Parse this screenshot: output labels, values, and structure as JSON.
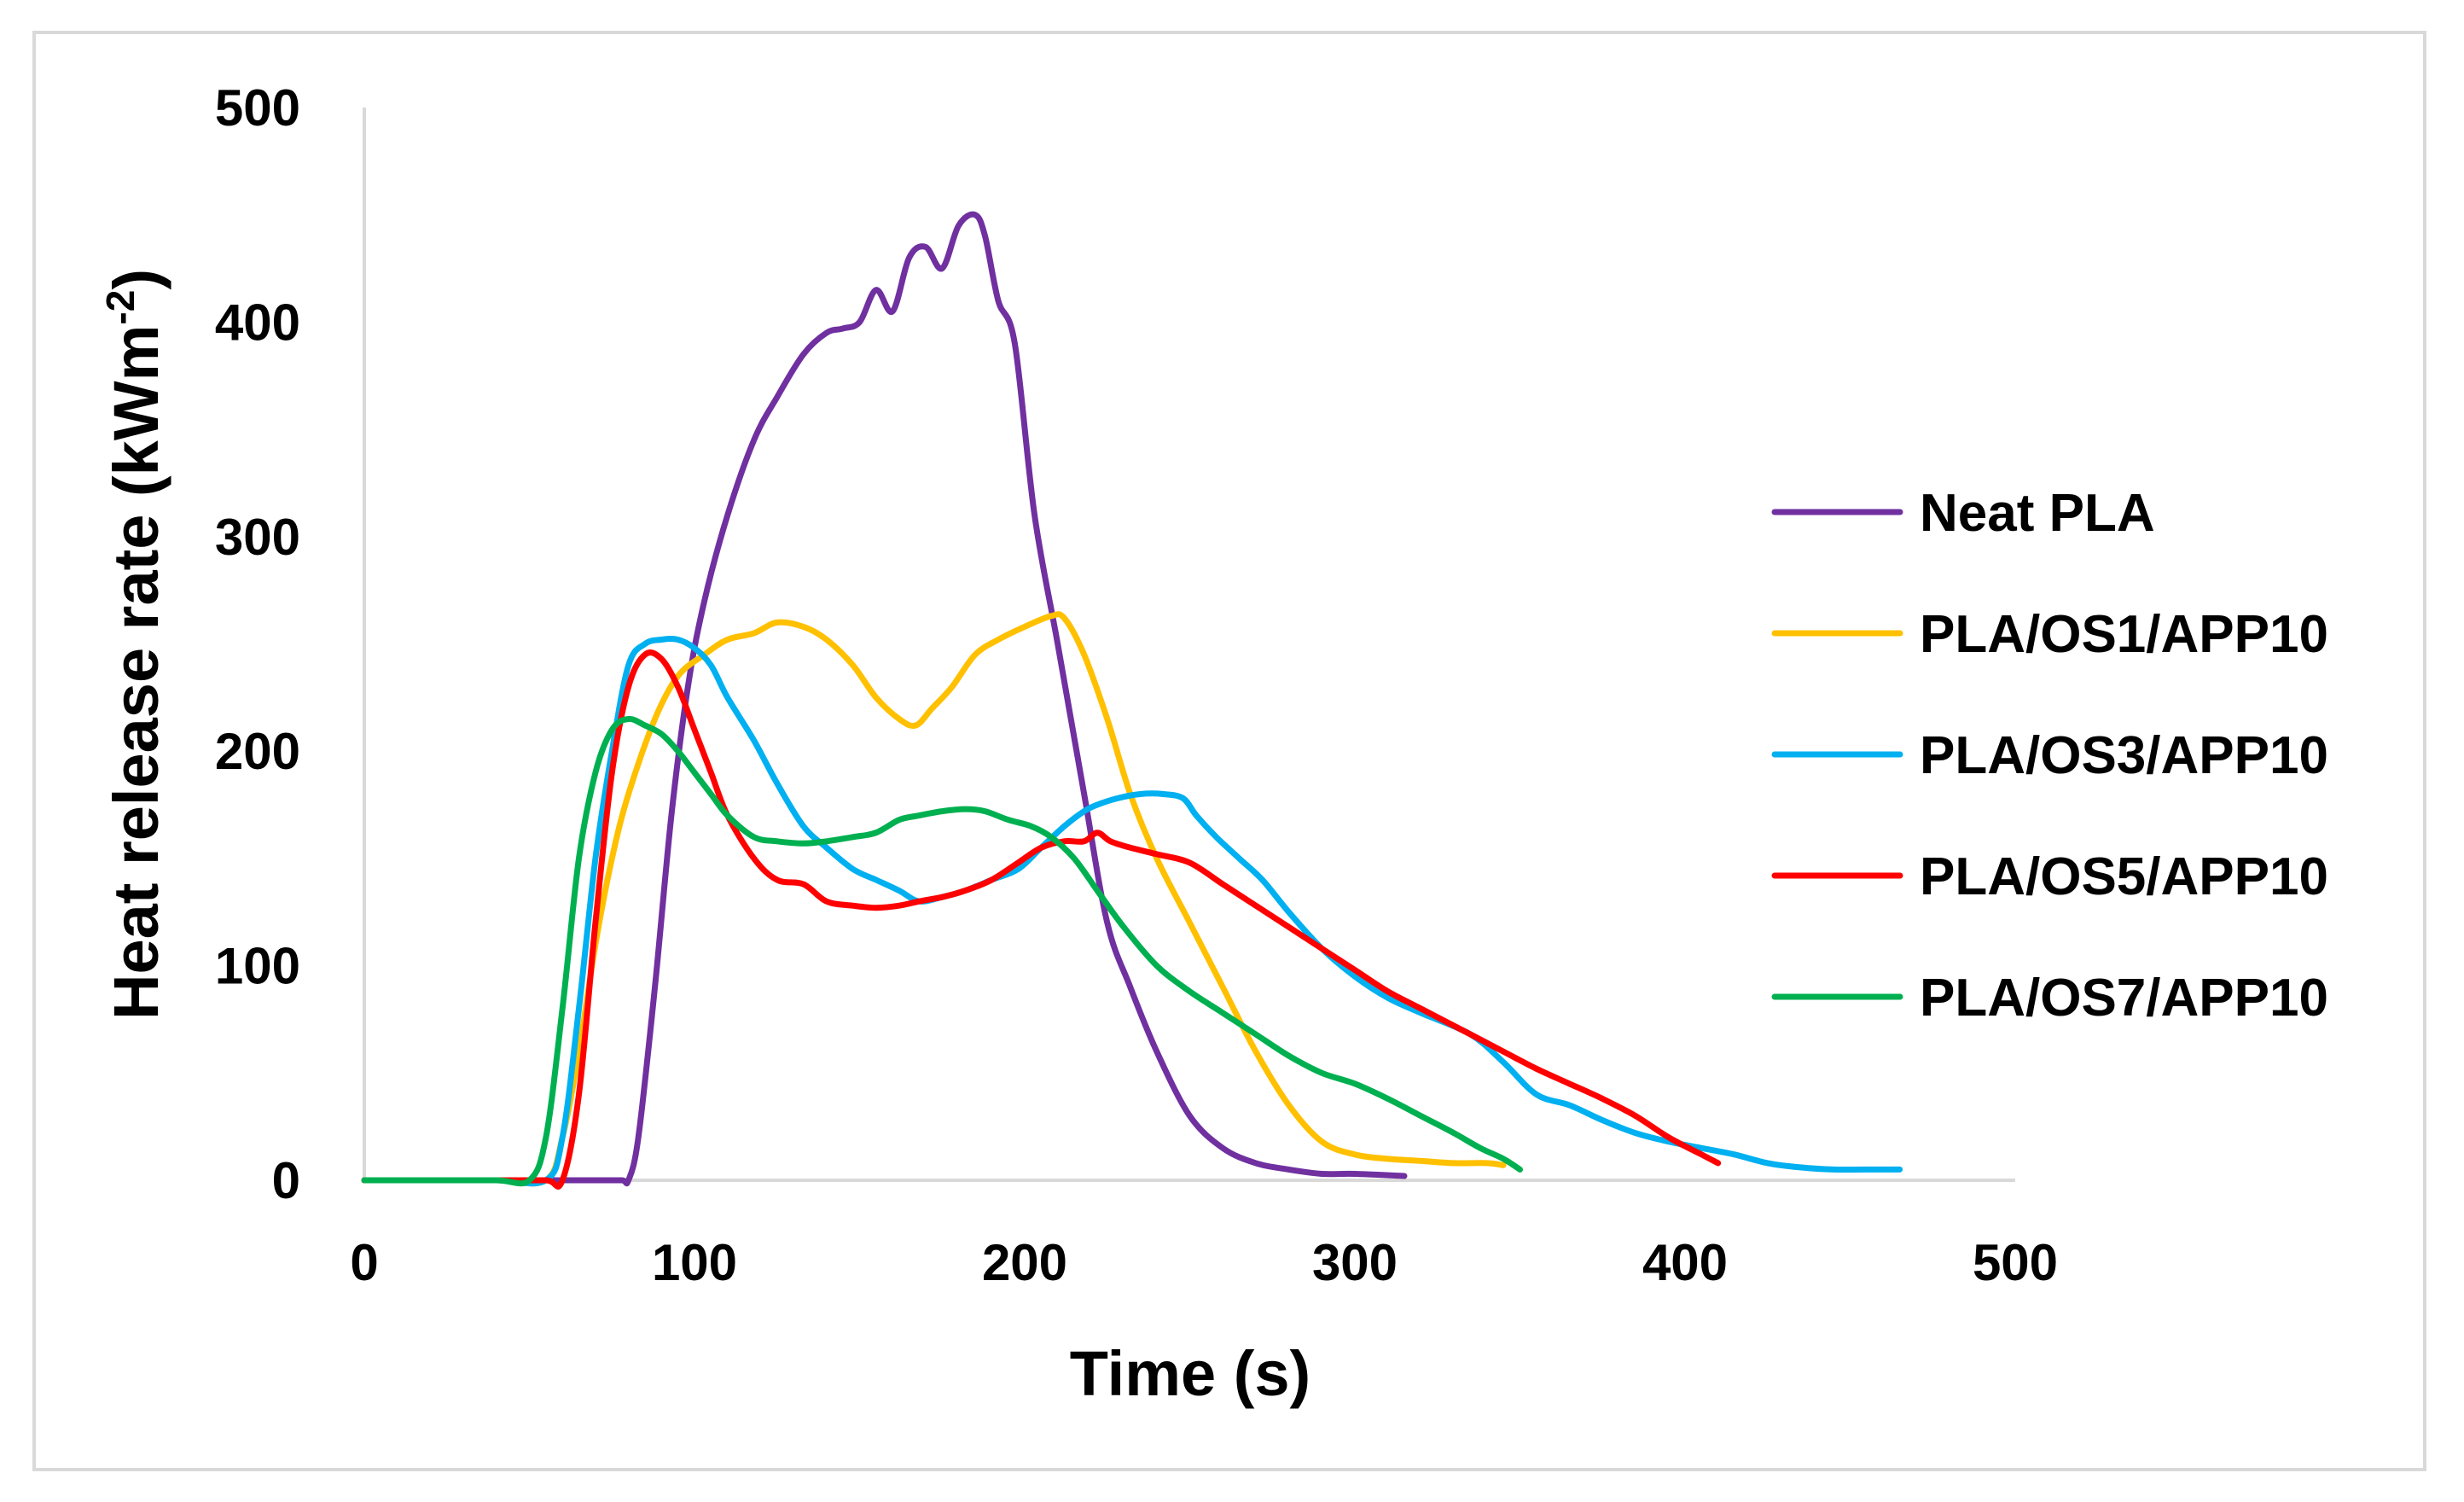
{
  "chart_data": {
    "type": "line",
    "title": "",
    "xlabel": "Time (s)",
    "ylabel": "Heat release rate (kWm",
    "ylabel_sup": "-2",
    "ylabel_suffix": ")",
    "xlim": [
      0,
      500
    ],
    "ylim": [
      0,
      500
    ],
    "x_ticks": [
      "0",
      "100",
      "200",
      "300",
      "400",
      "500"
    ],
    "y_ticks": [
      "0",
      "100",
      "200",
      "300",
      "400",
      "500"
    ],
    "grid": false,
    "legend_position": "right",
    "series": [
      {
        "name": "Neat PLA",
        "color": "#7030A0",
        "x": [
          0,
          20,
          40,
          60,
          70,
          78,
          80,
          83,
          88,
          93,
          98,
          103,
          110,
          118,
          125,
          133,
          140,
          145,
          150,
          155,
          160,
          165,
          170,
          175,
          180,
          185,
          188,
          192,
          197,
          203,
          210,
          218,
          225,
          232,
          240,
          250,
          260,
          270,
          280,
          290,
          300,
          315
        ],
        "y": [
          0,
          0,
          0,
          0,
          0,
          0,
          0,
          20,
          90,
          170,
          230,
          270,
          310,
          345,
          365,
          385,
          395,
          397,
          400,
          415,
          405,
          430,
          435,
          425,
          445,
          450,
          440,
          410,
          390,
          310,
          250,
          180,
          120,
          90,
          60,
          30,
          15,
          8,
          5,
          3,
          3,
          2
        ]
      },
      {
        "name": "PLA/OS1/APP10",
        "color": "#FFC000",
        "x": [
          0,
          20,
          40,
          55,
          60,
          65,
          70,
          75,
          80,
          88,
          95,
          103,
          110,
          118,
          125,
          133,
          140,
          148,
          155,
          162,
          167,
          172,
          178,
          185,
          192,
          200,
          208,
          212,
          218,
          225,
          232,
          240,
          250,
          260,
          270,
          280,
          290,
          300,
          310,
          320,
          330,
          340,
          345
        ],
        "y": [
          0,
          0,
          0,
          0,
          20,
          60,
          110,
          150,
          180,
          215,
          235,
          245,
          252,
          255,
          260,
          258,
          252,
          240,
          225,
          215,
          212,
          220,
          230,
          245,
          252,
          258,
          263,
          262,
          245,
          215,
          180,
          150,
          120,
          90,
          60,
          35,
          18,
          12,
          10,
          9,
          8,
          8,
          7
        ]
      },
      {
        "name": "PLA/OS3/APP10",
        "color": "#00B0F0",
        "x": [
          0,
          20,
          40,
          55,
          60,
          65,
          70,
          75,
          80,
          85,
          90,
          95,
          100,
          105,
          110,
          118,
          125,
          133,
          140,
          148,
          155,
          162,
          168,
          175,
          182,
          190,
          198,
          205,
          212,
          218,
          222,
          228,
          235,
          242,
          248,
          252,
          258,
          265,
          272,
          280,
          290,
          300,
          310,
          320,
          335,
          345,
          355,
          365,
          375,
          385,
          395,
          405,
          415,
          425,
          435,
          445,
          455,
          465
        ],
        "y": [
          0,
          0,
          0,
          0,
          20,
          80,
          150,
          200,
          240,
          250,
          252,
          252,
          248,
          240,
          225,
          205,
          185,
          165,
          155,
          145,
          140,
          135,
          130,
          132,
          135,
          140,
          145,
          155,
          165,
          172,
          175,
          178,
          180,
          180,
          178,
          170,
          160,
          150,
          140,
          125,
          108,
          95,
          85,
          78,
          68,
          55,
          40,
          35,
          28,
          22,
          18,
          15,
          12,
          8,
          6,
          5,
          5,
          5
        ]
      },
      {
        "name": "PLA/OS5/APP10",
        "color": "#FF0000",
        "x": [
          0,
          20,
          40,
          55,
          60,
          65,
          70,
          75,
          80,
          85,
          90,
          95,
          100,
          105,
          110,
          118,
          125,
          133,
          140,
          148,
          155,
          162,
          168,
          175,
          182,
          190,
          198,
          205,
          212,
          218,
          222,
          226,
          232,
          240,
          250,
          260,
          270,
          280,
          290,
          300,
          310,
          320,
          335,
          345,
          355,
          365,
          375,
          385,
          395,
          405,
          410
        ],
        "y": [
          0,
          0,
          0,
          0,
          0,
          40,
          120,
          190,
          230,
          245,
          243,
          230,
          210,
          190,
          170,
          150,
          140,
          138,
          130,
          128,
          127,
          128,
          130,
          132,
          135,
          140,
          148,
          155,
          158,
          158,
          162,
          158,
          155,
          152,
          148,
          138,
          128,
          118,
          108,
          98,
          88,
          80,
          68,
          60,
          52,
          45,
          38,
          30,
          20,
          12,
          8
        ]
      },
      {
        "name": "PLA/OS7/APP10",
        "color": "#00B050",
        "x": [
          0,
          20,
          40,
          50,
          55,
          60,
          65,
          70,
          75,
          80,
          85,
          90,
          95,
          100,
          105,
          110,
          118,
          125,
          133,
          140,
          148,
          155,
          162,
          168,
          175,
          182,
          188,
          195,
          202,
          208,
          215,
          222,
          230,
          240,
          250,
          260,
          270,
          280,
          290,
          300,
          310,
          320,
          330,
          338,
          345,
          350
        ],
        "y": [
          0,
          0,
          0,
          0,
          20,
          80,
          150,
          190,
          210,
          215,
          212,
          208,
          200,
          190,
          180,
          170,
          160,
          158,
          157,
          158,
          160,
          162,
          168,
          170,
          172,
          173,
          172,
          168,
          165,
          160,
          150,
          135,
          118,
          100,
          88,
          78,
          68,
          58,
          50,
          45,
          38,
          30,
          22,
          15,
          10,
          5
        ]
      }
    ]
  }
}
